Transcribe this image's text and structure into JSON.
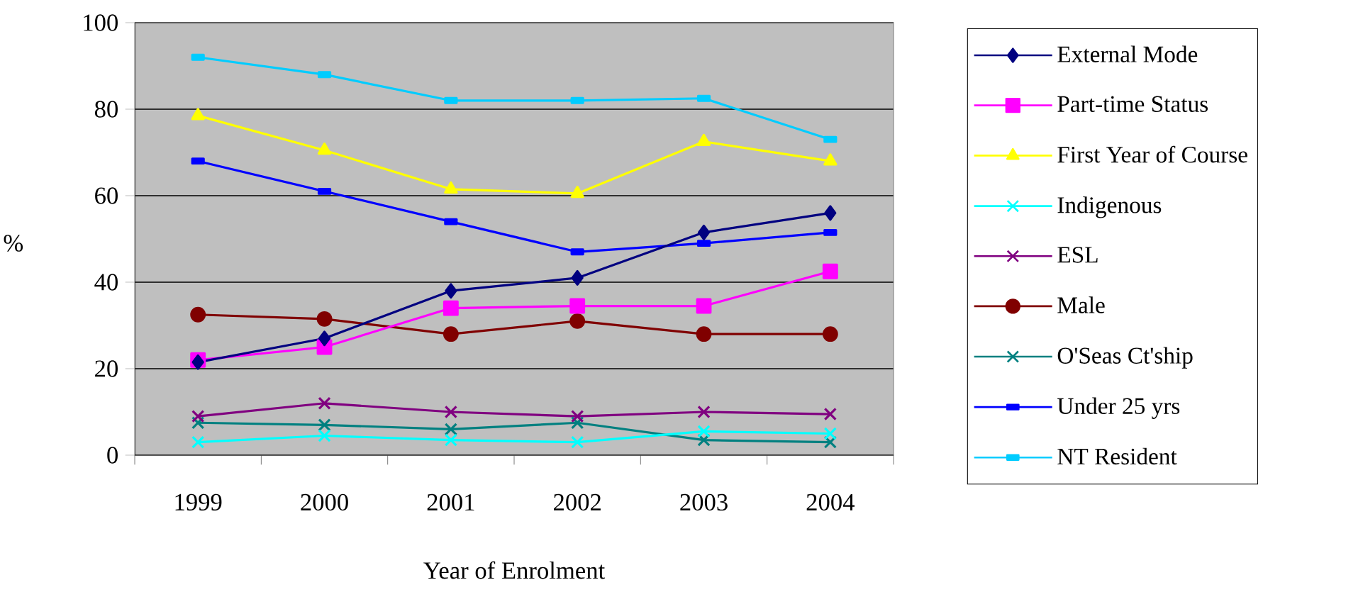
{
  "chart_data": {
    "type": "line",
    "xlabel": "Year of Enrolment",
    "ylabel": "%",
    "categories": [
      "1999",
      "2000",
      "2001",
      "2002",
      "2003",
      "2004"
    ],
    "ylim": [
      0,
      100
    ],
    "yticks": [
      0,
      20,
      40,
      60,
      80,
      100
    ],
    "grid": "y",
    "legend": "right",
    "line_style": "solid",
    "series": [
      {
        "name": "External Mode",
        "color": "#000080",
        "marker": "diamond",
        "values": [
          21.5,
          27,
          38,
          41,
          51.5,
          56
        ]
      },
      {
        "name": "Part-time Status",
        "color": "#ff00ff",
        "marker": "square",
        "values": [
          22,
          25,
          34,
          34.5,
          34.5,
          42.5
        ]
      },
      {
        "name": "First Year of Course",
        "color": "#ffff00",
        "marker": "triangle",
        "values": [
          78.5,
          70.5,
          61.5,
          60.5,
          72.5,
          68
        ]
      },
      {
        "name": "Indigenous",
        "color": "#00ffff",
        "marker": "cross",
        "values": [
          3,
          4.5,
          3.5,
          3,
          5.5,
          5
        ]
      },
      {
        "name": "ESL",
        "color": "#800080",
        "marker": "cross",
        "values": [
          9,
          12,
          10,
          9,
          10,
          9.5
        ]
      },
      {
        "name": "Male",
        "color": "#800000",
        "marker": "circle",
        "values": [
          32.5,
          31.5,
          28,
          31,
          28,
          28
        ]
      },
      {
        "name": "O'Seas Ct'ship",
        "color": "#008080",
        "marker": "cross",
        "values": [
          7.5,
          7,
          6,
          7.5,
          3.5,
          3
        ]
      },
      {
        "name": "Under 25 yrs",
        "color": "#0000ff",
        "marker": "square",
        "values": [
          68,
          61,
          54,
          47,
          49,
          51.5
        ]
      },
      {
        "name": "NT Resident",
        "color": "#00ccff",
        "marker": "square",
        "values": [
          92,
          88,
          82,
          82,
          82.5,
          73
        ]
      }
    ]
  }
}
